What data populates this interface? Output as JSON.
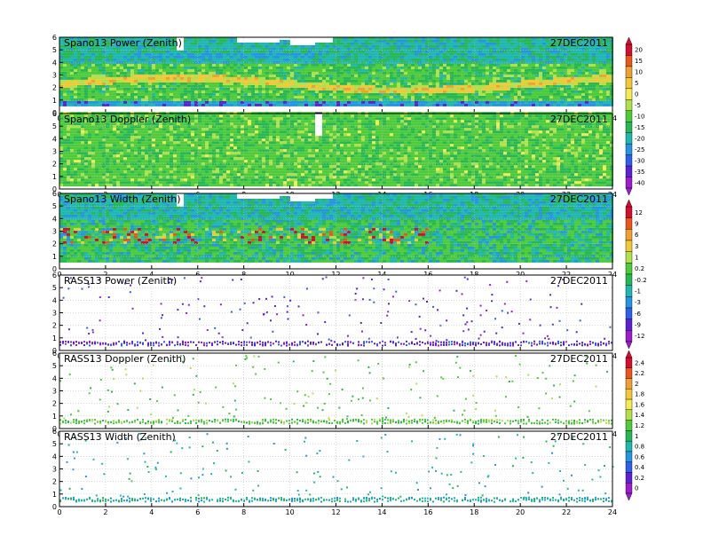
{
  "chart_data": {
    "type": "heatmap",
    "x_ticks": [
      "0",
      "2",
      "4",
      "6",
      "8",
      "10",
      "12",
      "14",
      "16",
      "18",
      "20",
      "22",
      "24"
    ],
    "y_ticks": [
      "0",
      "1",
      "2",
      "3",
      "4",
      "5",
      "6"
    ],
    "xlim": [
      0,
      24
    ],
    "ylim": [
      0,
      6
    ],
    "grid": true,
    "panels": [
      {
        "title": "Spano13 Power (Zenith)",
        "date": "27DEC2011",
        "colorbar": {
          "labels": [
            "20",
            "15",
            "10",
            "5",
            "0",
            "-5",
            "-10",
            "-15",
            "-20",
            "-25",
            "-30",
            "-35",
            "-40"
          ],
          "colors": [
            "#d11030",
            "#e8561c",
            "#f0a030",
            "#f2c837",
            "#f5ea52",
            "#b2e04b",
            "#4ecb3a",
            "#27b855",
            "#1fb7b0",
            "#2595e0",
            "#2f60e8",
            "#5c22cf",
            "#9a1ec9"
          ]
        },
        "description": "Dense green field with a yellow/orange layer near 2 km and blue band near 0.8 km; data mostly 0.5-6 km."
      },
      {
        "title": "Spano13 Doppler (Zenith)",
        "date": "27DEC2011",
        "colorbar_shared_with": 0,
        "description": "Dense green field with scattered light-green streaks; data 0.2-6 km."
      },
      {
        "title": "Spano13 Width (Zenith)",
        "date": "27DEC2011",
        "colorbar": {
          "labels": [
            "12",
            "9",
            "6",
            "3",
            "1",
            "0.2",
            "-0.2",
            "-1",
            "-3",
            "-6",
            "-9",
            "-12"
          ],
          "colors": [
            "#d11030",
            "#e8561c",
            "#f0a030",
            "#f2c837",
            "#b2e04b",
            "#4ecb3a",
            "#27b855",
            "#1fb7b0",
            "#2595e0",
            "#2f60e8",
            "#5c22cf",
            "#9a1ec9"
          ]
        },
        "description": "Green/cyan field with red/yellow patches near 2-3 km between 0 and 16 h."
      },
      {
        "title": "RASS13 Power (Zenith)",
        "date": "27DEC2011",
        "colorbar_shared_with": 2,
        "description": "Sparse purple points; dense purple band near 0.6 km."
      },
      {
        "title": "RASS13 Doppler (Zenith)",
        "date": "27DEC2011",
        "colorbar": {
          "labels": [
            "2.4",
            "2.2",
            "2",
            "1.8",
            "1.6",
            "1.4",
            "1.2",
            "1",
            "0.8",
            "0.6",
            "0.4",
            "0.2",
            "0"
          ],
          "colors": [
            "#d11030",
            "#e8561c",
            "#f0a030",
            "#f2c837",
            "#f5ea52",
            "#b2e04b",
            "#4ecb3a",
            "#27b855",
            "#1fb7b0",
            "#2595e0",
            "#2f60e8",
            "#5c22cf",
            "#9a1ec9"
          ]
        },
        "description": "Sparse green points; dense green band near 0.6 km."
      },
      {
        "title": "RASS13 Width (Zenith)",
        "date": "27DEC2011",
        "colorbar_shared_with": 4,
        "description": "Sparse cyan/green points; dense cyan band near 0.6 km."
      }
    ]
  }
}
